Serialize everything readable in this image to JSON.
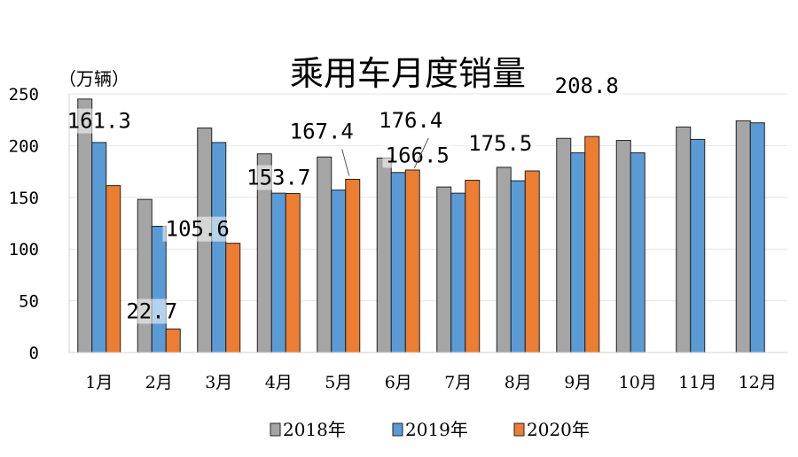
{
  "chart_data": {
    "type": "bar",
    "title": "乘用车月度销量",
    "ylabel": "（万辆）",
    "xlabel": "",
    "ylim": [
      0,
      250
    ],
    "yticks": [
      0,
      50,
      100,
      150,
      200,
      250
    ],
    "categories": [
      "1月",
      "2月",
      "3月",
      "4月",
      "5月",
      "6月",
      "7月",
      "8月",
      "9月",
      "10月",
      "11月",
      "12月"
    ],
    "series": [
      {
        "name": "2018年",
        "color": "#a5a5a5",
        "values": [
          245,
          148,
          217,
          192,
          189,
          188,
          160,
          179,
          207,
          205,
          218,
          224
        ]
      },
      {
        "name": "2019年",
        "color": "#5b9bd5",
        "values": [
          203,
          122,
          203,
          154,
          157,
          174,
          154,
          166,
          193,
          193,
          206,
          222
        ]
      },
      {
        "name": "2020年",
        "color": "#ed7d31",
        "values": [
          161.3,
          22.7,
          105.6,
          153.7,
          167.4,
          176.4,
          166.5,
          175.5,
          208.8,
          null,
          null,
          null
        ]
      }
    ],
    "data_labels": [
      "161.3",
      "22.7",
      "105.6",
      "153.7",
      "167.4",
      "176.4",
      "166.5",
      "175.5",
      "208.8"
    ],
    "legend_position": "bottom"
  }
}
